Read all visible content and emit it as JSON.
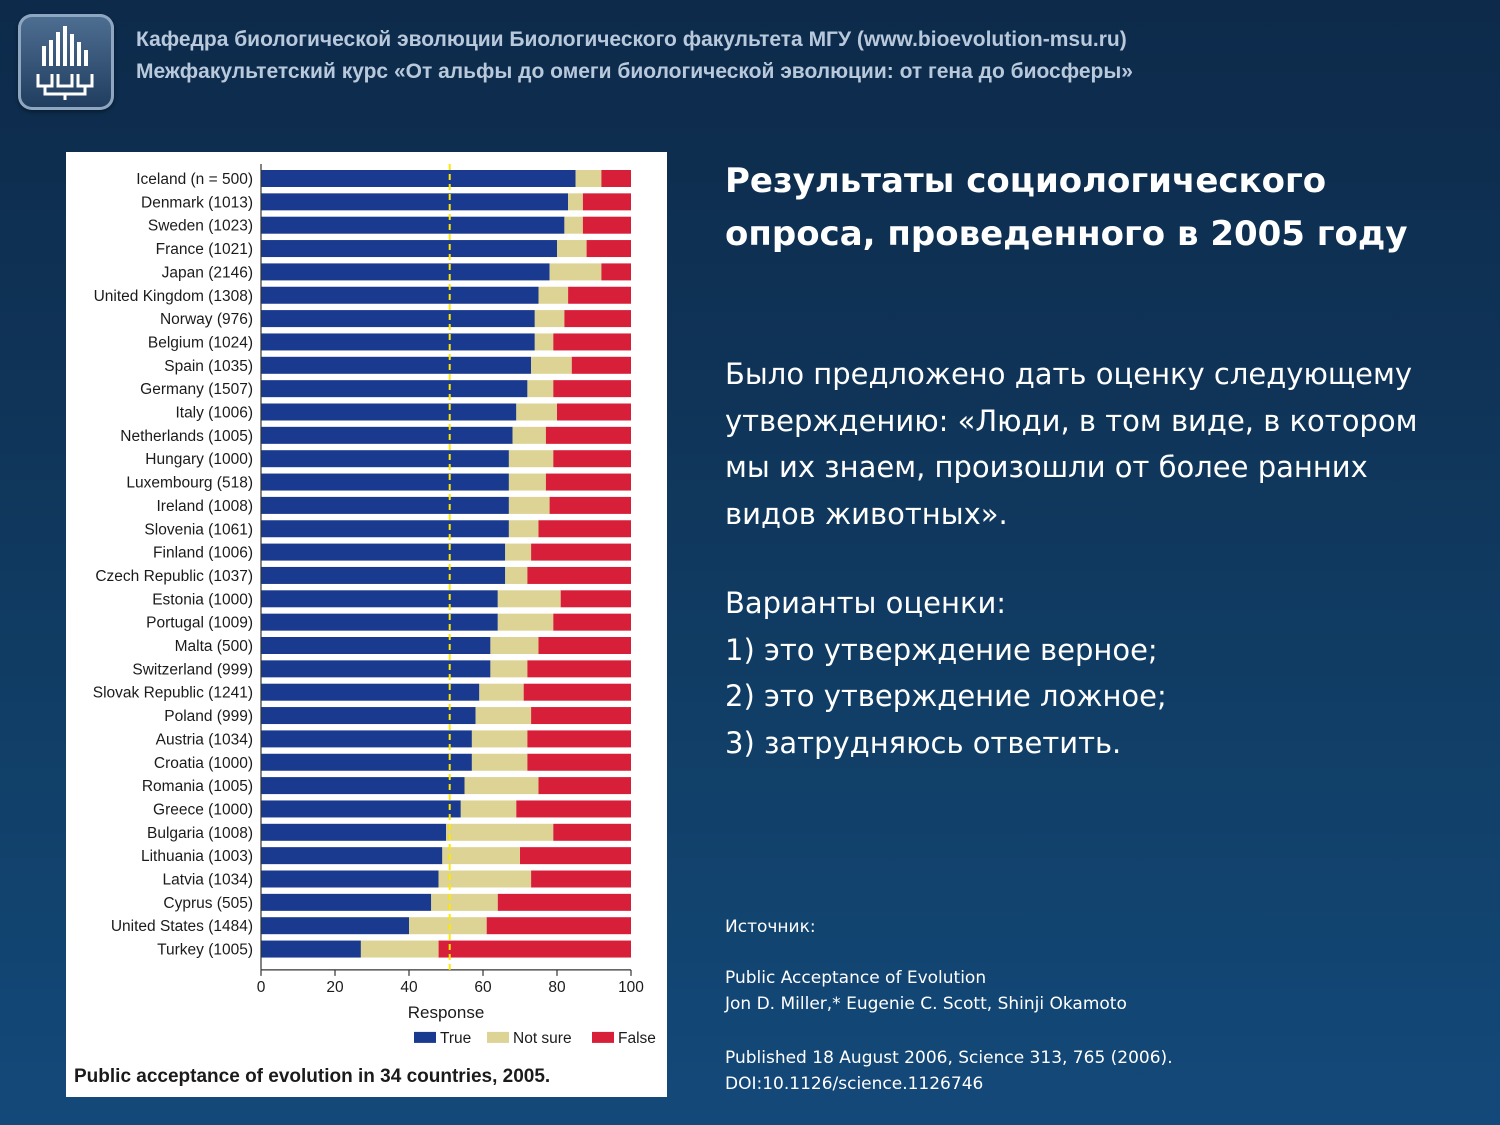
{
  "header": {
    "line1": "Кафедра биологической эволюции Биологического факультета МГУ (www.bioevolution-msu.ru)",
    "line2": "Межфакультетский курс «От альфы до омеги биологической эволюции: от гена до биосферы»"
  },
  "slide": {
    "title": "Результаты социологического опроса, проведенного в  2005 году",
    "question": "Было предложено дать оценку следующему утверждению: «Люди, в том виде, в котором мы их знаем, произошли от более ранних видов животных».",
    "options_heading": "Варианты оценки:",
    "options": [
      "1) это утверждение верное;",
      "2) это утверждение ложное;",
      "3) затрудняюсь ответить."
    ],
    "source_label": "Источник:",
    "source_title": "Public Acceptance of Evolution",
    "source_authors": "Jon D. Miller,* Eugenie C. Scott, Shinji Okamoto",
    "source_published": "Published 18 August 2006, Science 313, 765 (2006).",
    "source_doi": "DOI:10.1126/science.1126746"
  },
  "colors": {
    "true": "#1a3a8f",
    "not_sure": "#dcd394",
    "false": "#d81f3a",
    "reference_line": "#ffe800"
  },
  "chart_data": {
    "type": "bar",
    "orientation": "horizontal",
    "stacked": true,
    "caption": "Public acceptance of evolution in 34 countries, 2005.",
    "xlabel": "Response",
    "xlim": [
      0,
      100
    ],
    "xticks": [
      "0",
      "20",
      "40",
      "60",
      "80",
      "100"
    ],
    "reference_line_x": 51,
    "legend": [
      "True",
      "Not sure",
      "False"
    ],
    "legend_position": "bottom-right",
    "categories": [
      "Iceland (n = 500)",
      "Denmark (1013)",
      "Sweden (1023)",
      "France (1021)",
      "Japan (2146)",
      "United Kingdom (1308)",
      "Norway (976)",
      "Belgium (1024)",
      "Spain (1035)",
      "Germany (1507)",
      "Italy (1006)",
      "Netherlands (1005)",
      "Hungary (1000)",
      "Luxembourg (518)",
      "Ireland (1008)",
      "Slovenia (1061)",
      "Finland (1006)",
      "Czech Republic (1037)",
      "Estonia (1000)",
      "Portugal (1009)",
      "Malta (500)",
      "Switzerland (999)",
      "Slovak Republic (1241)",
      "Poland (999)",
      "Austria (1034)",
      "Croatia (1000)",
      "Romania (1005)",
      "Greece (1000)",
      "Bulgaria (1008)",
      "Lithuania (1003)",
      "Latvia (1034)",
      "Cyprus (505)",
      "United States (1484)",
      "Turkey (1005)"
    ],
    "series": [
      {
        "name": "True",
        "values": [
          85,
          83,
          82,
          80,
          78,
          75,
          74,
          74,
          73,
          72,
          69,
          68,
          67,
          67,
          67,
          67,
          66,
          66,
          64,
          64,
          62,
          62,
          59,
          58,
          57,
          57,
          55,
          54,
          50,
          49,
          48,
          46,
          40,
          27
        ]
      },
      {
        "name": "Not sure",
        "values": [
          7,
          4,
          5,
          8,
          14,
          8,
          8,
          5,
          11,
          7,
          11,
          9,
          12,
          10,
          11,
          8,
          7,
          6,
          17,
          15,
          13,
          10,
          12,
          15,
          15,
          15,
          20,
          15,
          29,
          21,
          25,
          18,
          21,
          21
        ]
      },
      {
        "name": "False",
        "values": [
          8,
          13,
          13,
          12,
          8,
          17,
          18,
          21,
          16,
          21,
          20,
          23,
          21,
          23,
          22,
          25,
          27,
          28,
          19,
          21,
          25,
          28,
          29,
          27,
          28,
          28,
          25,
          31,
          21,
          30,
          27,
          36,
          39,
          52
        ]
      }
    ]
  }
}
